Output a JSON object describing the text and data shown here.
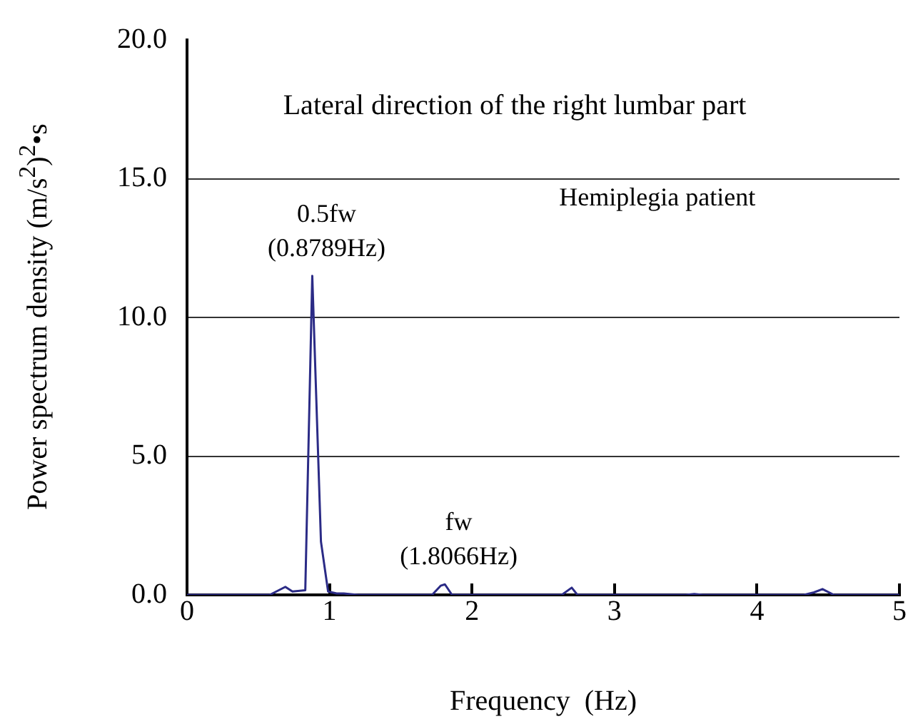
{
  "chart_data": {
    "type": "line",
    "title": "Lateral direction of the right lumbar part",
    "subtitle": "Hemiplegia patient",
    "xlabel": "Frequency  (Hz)",
    "ylabel": "Power spectrum density  (m/s$^{2}$)$^{2}$•s",
    "series": [
      {
        "color": "#2b2b86",
        "x": [
          0,
          0.58,
          0.69,
          0.74,
          0.83,
          0.879,
          0.94,
          0.99,
          1.05,
          1.1,
          1.2,
          1.72,
          1.78,
          1.81,
          1.86,
          2.63,
          2.7,
          2.74,
          3.5,
          3.56,
          3.62,
          4.33,
          4.4,
          4.46,
          4.54,
          5
        ],
        "values": [
          0,
          0,
          0.29,
          0.12,
          0.17,
          11.5,
          1.92,
          0.12,
          0.05,
          0.05,
          0,
          0,
          0.33,
          0.38,
          0,
          0,
          0.26,
          0,
          0,
          0.03,
          0,
          0,
          0.09,
          0.21,
          0,
          0
        ]
      }
    ],
    "xlim": [
      0,
      5
    ],
    "xticks": [
      0,
      1,
      2,
      3,
      4,
      5
    ],
    "ylim": [
      0,
      20
    ],
    "yticks": [
      {
        "value": 0,
        "label": "0.0"
      },
      {
        "value": 5,
        "label": "5.0"
      },
      {
        "value": 10,
        "label": "10.0"
      },
      {
        "value": 15,
        "label": "15.0"
      },
      {
        "value": 20,
        "label": "20.0"
      }
    ],
    "annotations": [
      {
        "text": "0.5fw\n(0.8789Hz)",
        "x": 0.8789,
        "y": 11.5
      },
      {
        "text": "fw\n(1.8066Hz)",
        "x": 1.8066,
        "y": 0.38
      }
    ],
    "grid": "y",
    "legend": false,
    "marker": "none",
    "line_style": "solid"
  }
}
